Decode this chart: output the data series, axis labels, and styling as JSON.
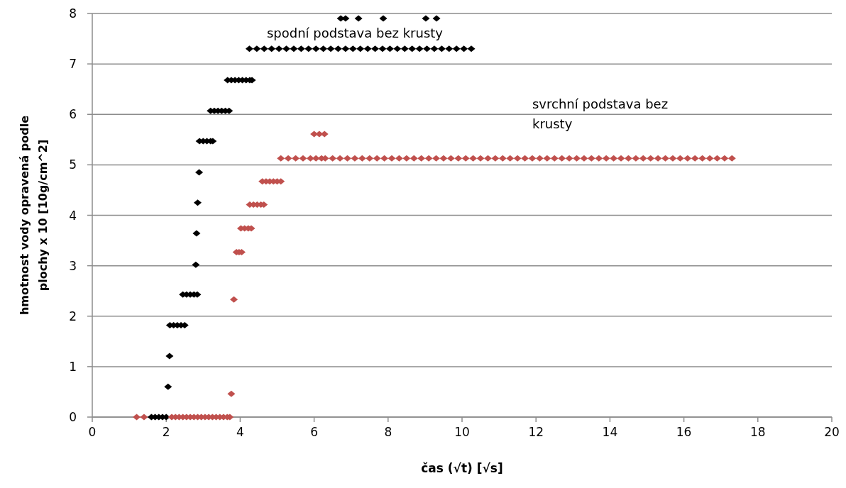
{
  "chart_data": {
    "type": "scatter",
    "xlabel": "čas (√t)  [√s]",
    "ylabel": "hmotnost vody opravená podle plochy x 10  [10g/cm^2]",
    "xlim": [
      0,
      20
    ],
    "xticks": [
      0,
      2,
      4,
      6,
      8,
      10,
      12,
      14,
      16,
      18,
      20
    ],
    "ylim": [
      0,
      8
    ],
    "yticks": [
      0,
      1,
      2,
      3,
      4,
      5,
      6,
      7,
      8
    ],
    "grid": "y",
    "marker": "diamond",
    "series": [
      {
        "name": "spodní podstava bez krusty",
        "color": "#000000",
        "x": [
          1.6,
          1.7,
          1.8,
          1.9,
          2.0,
          2.05,
          2.09,
          2.1,
          2.2,
          2.3,
          2.4,
          2.5,
          2.45,
          2.55,
          2.65,
          2.75,
          2.84,
          2.8,
          2.82,
          2.85,
          2.89,
          2.9,
          3.0,
          3.1,
          3.2,
          3.26,
          3.2,
          3.3,
          3.4,
          3.5,
          3.6,
          3.7,
          3.66,
          3.76,
          3.86,
          3.96,
          4.06,
          4.16,
          4.26,
          4.32,
          4.25,
          4.45,
          4.65,
          4.85,
          5.05,
          5.25,
          5.45,
          5.65,
          5.85,
          6.05,
          6.25,
          6.45,
          6.65,
          6.85,
          7.05,
          7.25,
          7.45,
          7.65,
          7.85,
          8.05,
          8.25,
          8.45,
          8.65,
          8.85,
          9.05,
          9.25,
          9.45,
          9.65,
          9.85,
          10.05,
          10.25,
          6.72,
          6.85,
          7.2,
          7.87,
          9.02,
          9.31
        ],
        "values": [
          0,
          0,
          0,
          0,
          0,
          0.6,
          1.21,
          1.82,
          1.82,
          1.82,
          1.82,
          1.82,
          2.43,
          2.43,
          2.43,
          2.43,
          2.43,
          3.02,
          3.64,
          4.25,
          4.85,
          5.47,
          5.47,
          5.47,
          5.47,
          5.47,
          6.07,
          6.07,
          6.07,
          6.07,
          6.07,
          6.07,
          6.68,
          6.68,
          6.68,
          6.68,
          6.68,
          6.68,
          6.68,
          6.68,
          7.3,
          7.3,
          7.3,
          7.3,
          7.3,
          7.3,
          7.3,
          7.3,
          7.3,
          7.3,
          7.3,
          7.3,
          7.3,
          7.3,
          7.3,
          7.3,
          7.3,
          7.3,
          7.3,
          7.3,
          7.3,
          7.3,
          7.3,
          7.3,
          7.3,
          7.3,
          7.3,
          7.3,
          7.3,
          7.3,
          7.3,
          7.9,
          7.9,
          7.9,
          7.9,
          7.9,
          7.9
        ]
      },
      {
        "name": "svrchní podstava bez krusty",
        "color": "#c0504d",
        "x": [
          1.2,
          1.4,
          2.15,
          2.25,
          2.35,
          2.45,
          2.55,
          2.65,
          2.75,
          2.85,
          2.95,
          3.05,
          3.15,
          3.25,
          3.35,
          3.45,
          3.55,
          3.65,
          3.72,
          3.76,
          3.83,
          3.9,
          3.97,
          4.04,
          4.02,
          4.12,
          4.22,
          4.3,
          4.26,
          4.36,
          4.46,
          4.56,
          4.64,
          4.6,
          4.7,
          4.8,
          4.9,
          5.0,
          5.1,
          5.1,
          5.3,
          5.5,
          5.7,
          5.9,
          6.05,
          6.2,
          6.3,
          6.5,
          6.7,
          6.9,
          7.1,
          7.3,
          7.5,
          7.7,
          7.9,
          8.1,
          8.3,
          8.5,
          8.7,
          8.9,
          9.1,
          9.3,
          9.5,
          9.7,
          9.9,
          10.1,
          10.3,
          10.5,
          10.7,
          10.9,
          11.1,
          11.3,
          11.5,
          11.7,
          11.9,
          12.1,
          12.3,
          12.5,
          12.7,
          12.9,
          13.1,
          13.3,
          13.5,
          13.7,
          13.9,
          14.1,
          14.3,
          14.5,
          14.7,
          14.9,
          15.1,
          15.3,
          15.5,
          15.7,
          15.9,
          16.1,
          16.3,
          16.5,
          16.7,
          16.9,
          17.1,
          17.3,
          6.0,
          6.14,
          6.28
        ],
        "values": [
          0,
          0,
          0,
          0,
          0,
          0,
          0,
          0,
          0,
          0,
          0,
          0,
          0,
          0,
          0,
          0,
          0,
          0,
          0,
          0.46,
          2.33,
          3.27,
          3.27,
          3.27,
          3.74,
          3.74,
          3.74,
          3.74,
          4.21,
          4.21,
          4.21,
          4.21,
          4.21,
          4.67,
          4.67,
          4.67,
          4.67,
          4.67,
          4.67,
          5.13,
          5.13,
          5.13,
          5.13,
          5.13,
          5.13,
          5.13,
          5.13,
          5.13,
          5.13,
          5.13,
          5.13,
          5.13,
          5.13,
          5.13,
          5.13,
          5.13,
          5.13,
          5.13,
          5.13,
          5.13,
          5.13,
          5.13,
          5.13,
          5.13,
          5.13,
          5.13,
          5.13,
          5.13,
          5.13,
          5.13,
          5.13,
          5.13,
          5.13,
          5.13,
          5.13,
          5.13,
          5.13,
          5.13,
          5.13,
          5.13,
          5.13,
          5.13,
          5.13,
          5.13,
          5.13,
          5.13,
          5.13,
          5.13,
          5.13,
          5.13,
          5.13,
          5.13,
          5.13,
          5.13,
          5.13,
          5.13,
          5.13,
          5.13,
          5.13,
          5.13,
          5.13,
          5.13,
          5.61,
          5.61,
          5.61
        ]
      }
    ]
  }
}
